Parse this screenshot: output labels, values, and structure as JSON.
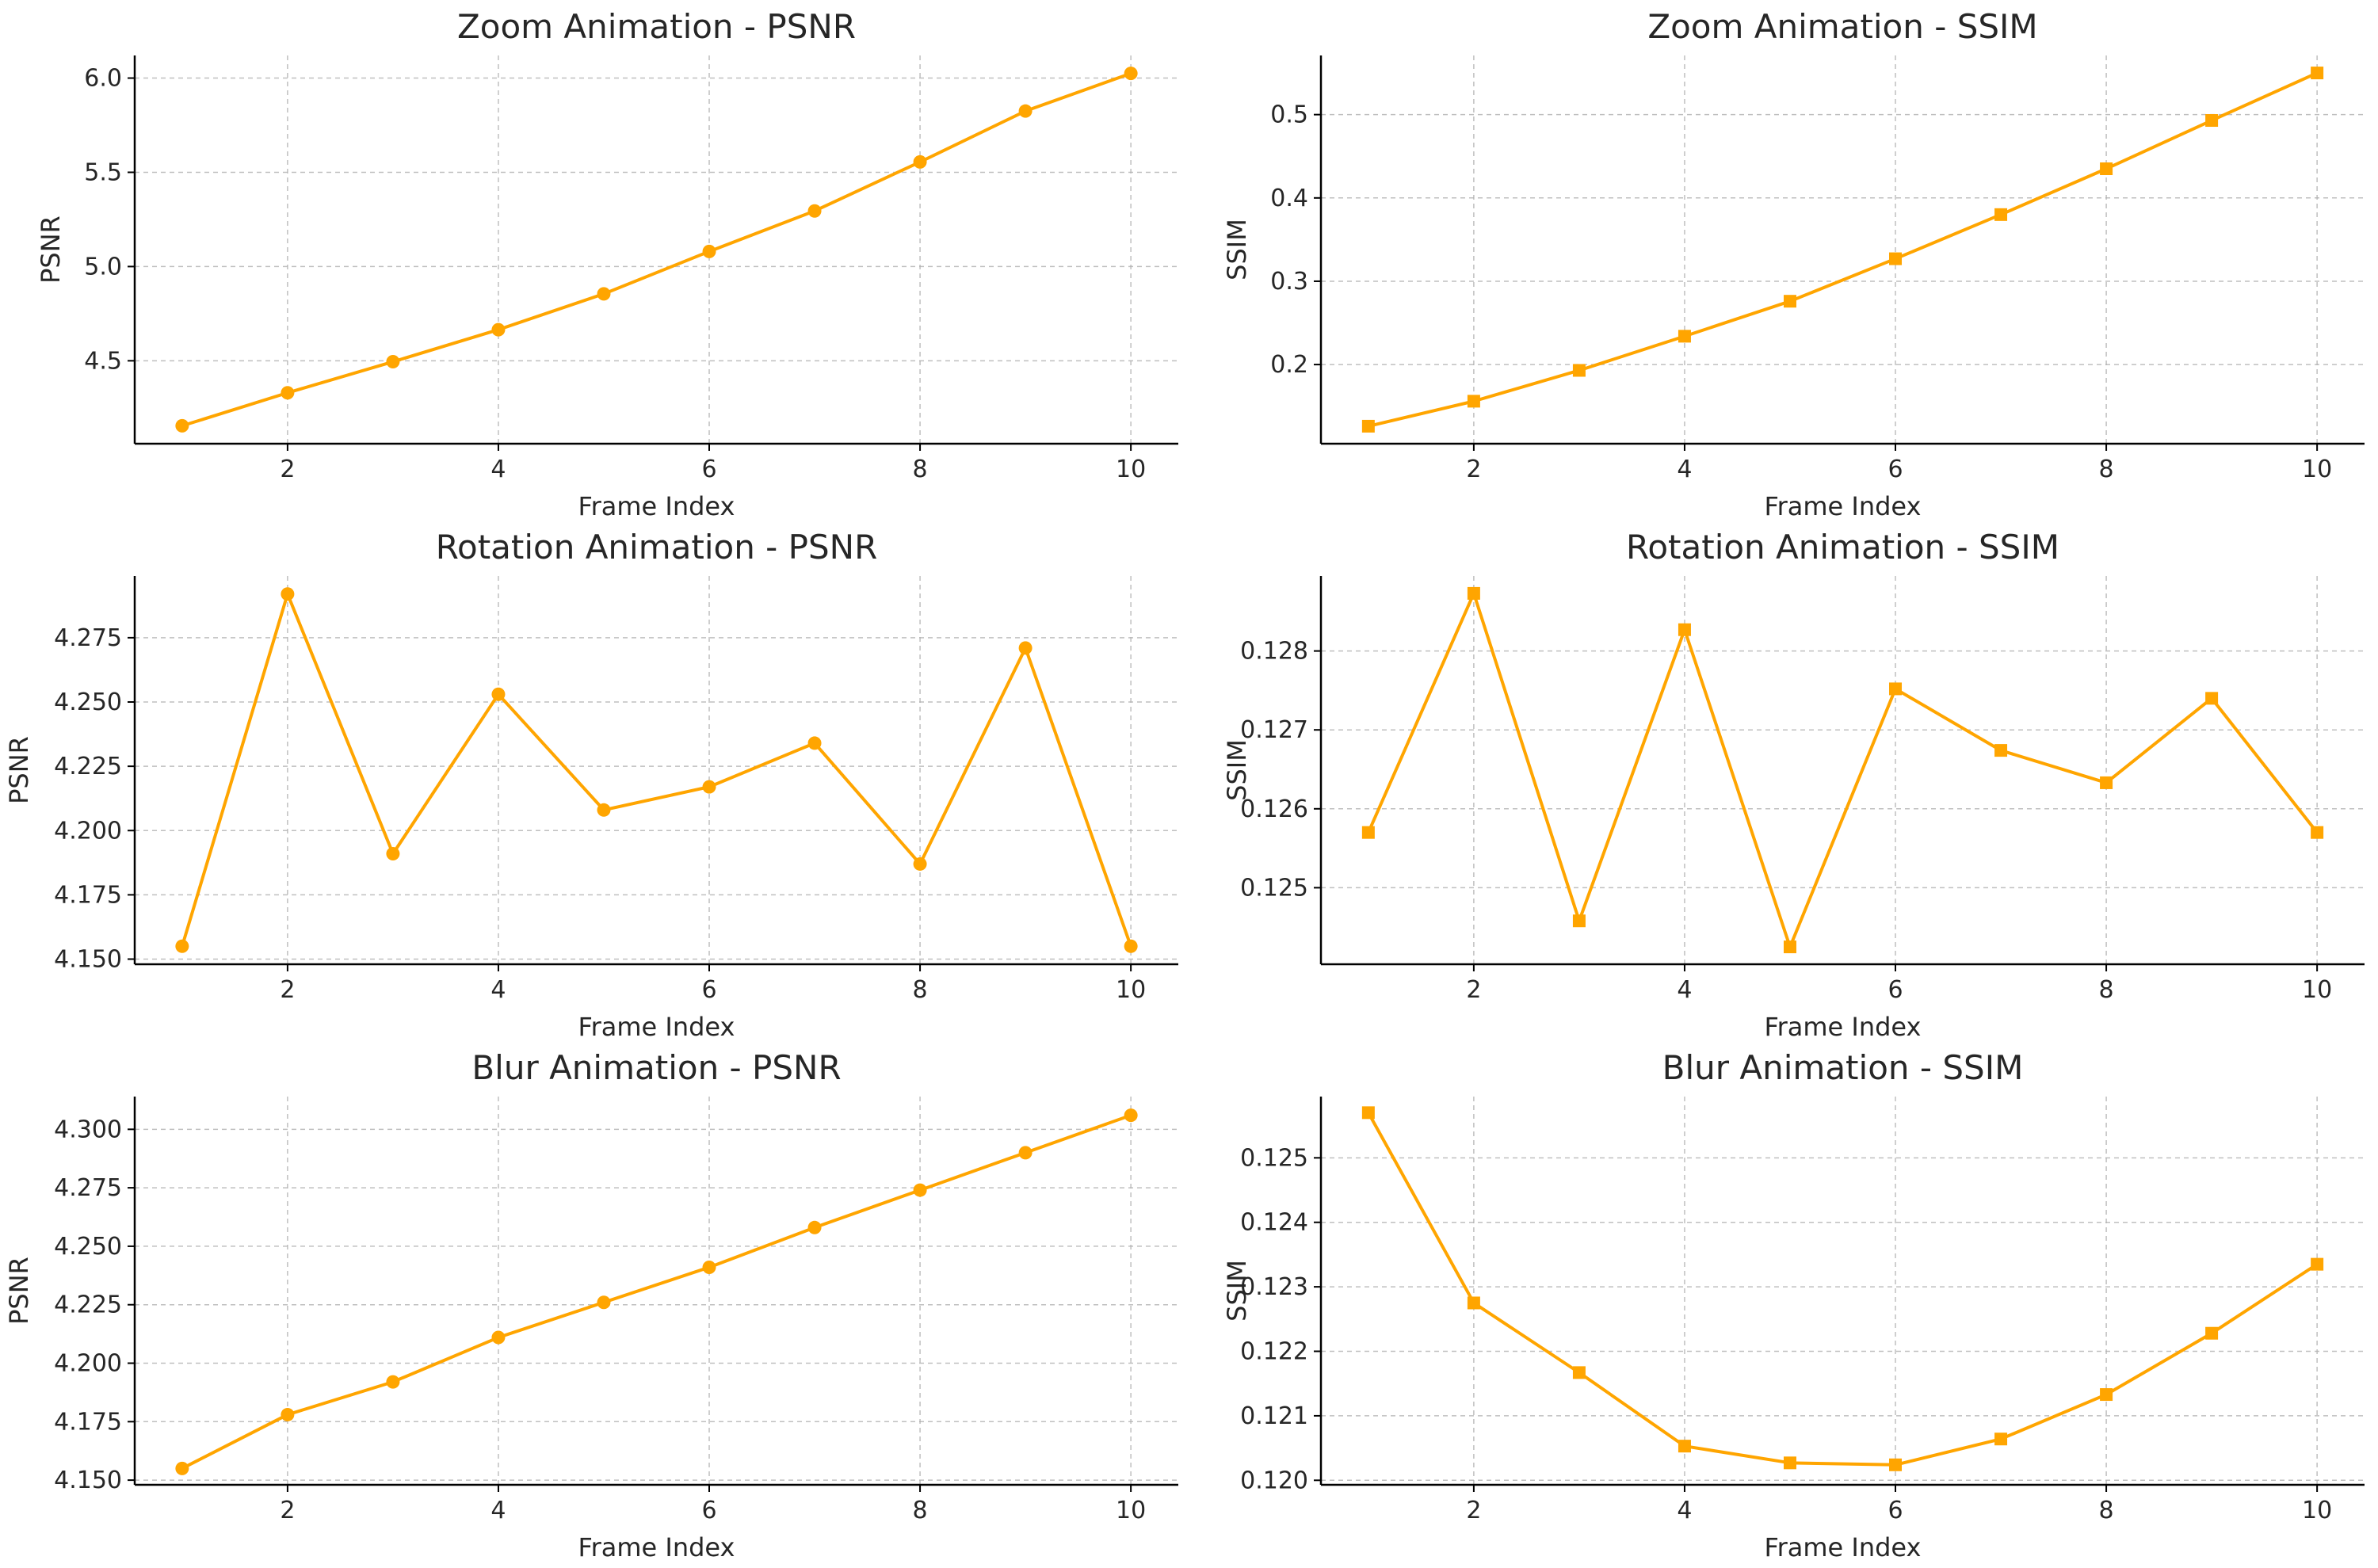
{
  "colors": {
    "series": "#FFA500",
    "background": "#ffffff",
    "text": "#262626"
  },
  "chart_data": [
    {
      "type": "line",
      "marker": "circle",
      "title": "Zoom Animation - PSNR",
      "xlabel": "Frame Index",
      "ylabel": "PSNR",
      "x": [
        1,
        2,
        3,
        4,
        5,
        6,
        7,
        8,
        9,
        10
      ],
      "values": [
        4.155,
        4.33,
        4.495,
        4.665,
        4.855,
        5.08,
        5.295,
        5.555,
        5.825,
        6.025
      ],
      "xticks": [
        2,
        4,
        6,
        8,
        10
      ],
      "xtick_labels": [
        "2",
        "4",
        "6",
        "8",
        "10"
      ],
      "yticks": [
        4.5,
        5.0,
        5.5,
        6.0
      ],
      "ytick_labels": [
        "4.5",
        "5.0",
        "5.5",
        "6.0"
      ],
      "xlim": [
        0.55,
        10.45
      ],
      "ylim": [
        4.06,
        6.12
      ],
      "grid": true
    },
    {
      "type": "line",
      "marker": "square",
      "title": "Zoom Animation - SSIM",
      "xlabel": "Frame Index",
      "ylabel": "SSIM",
      "x": [
        1,
        2,
        3,
        4,
        5,
        6,
        7,
        8,
        9,
        10
      ],
      "values": [
        0.126,
        0.156,
        0.193,
        0.234,
        0.276,
        0.327,
        0.38,
        0.435,
        0.493,
        0.55
      ],
      "xticks": [
        2,
        4,
        6,
        8,
        10
      ],
      "xtick_labels": [
        "2",
        "4",
        "6",
        "8",
        "10"
      ],
      "yticks": [
        0.2,
        0.3,
        0.4,
        0.5
      ],
      "ytick_labels": [
        "0.2",
        "0.3",
        "0.4",
        "0.5"
      ],
      "xlim": [
        0.55,
        10.45
      ],
      "ylim": [
        0.105,
        0.571
      ],
      "grid": true
    },
    {
      "type": "line",
      "marker": "circle",
      "title": "Rotation Animation - PSNR",
      "xlabel": "Frame Index",
      "ylabel": "PSNR",
      "x": [
        1,
        2,
        3,
        4,
        5,
        6,
        7,
        8,
        9,
        10
      ],
      "values": [
        4.155,
        4.292,
        4.191,
        4.253,
        4.208,
        4.217,
        4.234,
        4.187,
        4.271,
        4.155
      ],
      "xticks": [
        2,
        4,
        6,
        8,
        10
      ],
      "xtick_labels": [
        "2",
        "4",
        "6",
        "8",
        "10"
      ],
      "yticks": [
        4.15,
        4.175,
        4.2,
        4.225,
        4.25,
        4.275
      ],
      "ytick_labels": [
        "4.150",
        "4.175",
        "4.200",
        "4.225",
        "4.250",
        "4.275"
      ],
      "xlim": [
        0.55,
        10.45
      ],
      "ylim": [
        4.148,
        4.299
      ],
      "grid": true
    },
    {
      "type": "line",
      "marker": "square",
      "title": "Rotation Animation - SSIM",
      "xlabel": "Frame Index",
      "ylabel": "SSIM",
      "x": [
        1,
        2,
        3,
        4,
        5,
        6,
        7,
        8,
        9,
        10
      ],
      "values": [
        0.1257,
        0.12873,
        0.12458,
        0.12827,
        0.12425,
        0.12752,
        0.12674,
        0.12633,
        0.1274,
        0.1257
      ],
      "xticks": [
        2,
        4,
        6,
        8,
        10
      ],
      "xtick_labels": [
        "2",
        "4",
        "6",
        "8",
        "10"
      ],
      "yticks": [
        0.125,
        0.126,
        0.127,
        0.128
      ],
      "ytick_labels": [
        "0.125",
        "0.126",
        "0.127",
        "0.128"
      ],
      "xlim": [
        0.55,
        10.45
      ],
      "ylim": [
        0.12403,
        0.12895
      ],
      "grid": true
    },
    {
      "type": "line",
      "marker": "circle",
      "title": "Blur Animation - PSNR",
      "xlabel": "Frame Index",
      "ylabel": "PSNR",
      "x": [
        1,
        2,
        3,
        4,
        5,
        6,
        7,
        8,
        9,
        10
      ],
      "values": [
        4.155,
        4.178,
        4.192,
        4.211,
        4.226,
        4.241,
        4.258,
        4.274,
        4.29,
        4.306
      ],
      "xticks": [
        2,
        4,
        6,
        8,
        10
      ],
      "xtick_labels": [
        "2",
        "4",
        "6",
        "8",
        "10"
      ],
      "yticks": [
        4.15,
        4.175,
        4.2,
        4.225,
        4.25,
        4.275,
        4.3
      ],
      "ytick_labels": [
        "4.150",
        "4.175",
        "4.200",
        "4.225",
        "4.250",
        "4.275",
        "4.300"
      ],
      "xlim": [
        0.55,
        10.45
      ],
      "ylim": [
        4.148,
        4.314
      ],
      "grid": true
    },
    {
      "type": "line",
      "marker": "square",
      "title": "Blur Animation - SSIM",
      "xlabel": "Frame Index",
      "ylabel": "SSIM",
      "x": [
        1,
        2,
        3,
        4,
        5,
        6,
        7,
        8,
        9,
        10
      ],
      "values": [
        0.1257,
        0.12275,
        0.12167,
        0.12053,
        0.12027,
        0.12024,
        0.12064,
        0.12133,
        0.12228,
        0.12335
      ],
      "xticks": [
        2,
        4,
        6,
        8,
        10
      ],
      "xtick_labels": [
        "2",
        "4",
        "6",
        "8",
        "10"
      ],
      "yticks": [
        0.12,
        0.121,
        0.122,
        0.123,
        0.124,
        0.125
      ],
      "ytick_labels": [
        "0.120",
        "0.121",
        "0.122",
        "0.123",
        "0.124",
        "0.125"
      ],
      "xlim": [
        0.55,
        10.45
      ],
      "ylim": [
        0.11993,
        0.12595
      ],
      "grid": true
    }
  ]
}
